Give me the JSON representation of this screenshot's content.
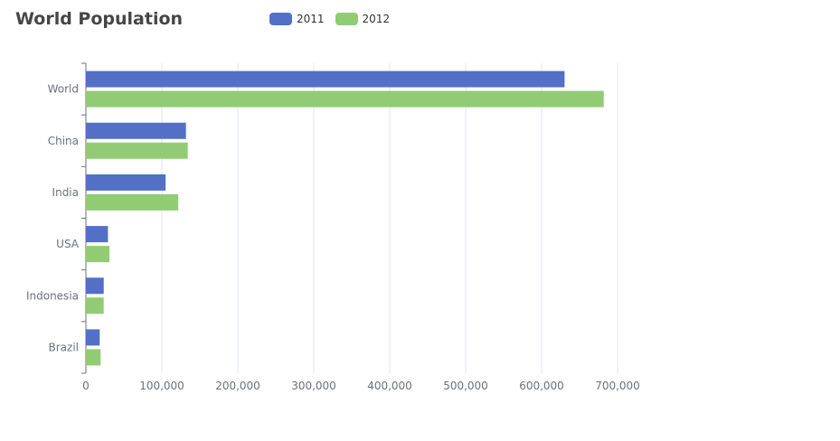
{
  "chart_data": {
    "type": "bar",
    "orientation": "horizontal",
    "title": "World Population",
    "categories": [
      "World",
      "China",
      "India",
      "USA",
      "Indonesia",
      "Brazil"
    ],
    "series": [
      {
        "name": "2011",
        "color": "#5470c6",
        "values": [
          630230,
          131744,
          104970,
          29034,
          23489,
          18203
        ]
      },
      {
        "name": "2012",
        "color": "#91cc75",
        "values": [
          681807,
          134141,
          121594,
          31000,
          23438,
          19325
        ]
      }
    ],
    "xlim": [
      0,
      700000
    ],
    "xticks": [
      "0",
      "100,000",
      "200,000",
      "300,000",
      "400,000",
      "500,000",
      "600,000",
      "700,000"
    ],
    "grid": true,
    "legend_position": "top-center"
  }
}
